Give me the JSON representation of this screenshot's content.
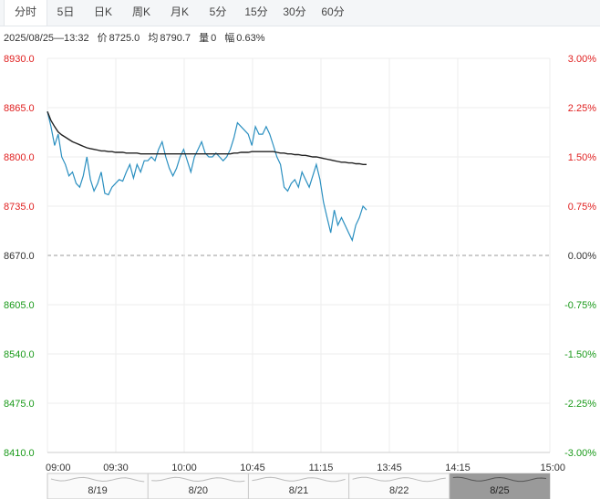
{
  "tabs": [
    {
      "label": "分时",
      "active": true
    },
    {
      "label": "5日",
      "active": false
    },
    {
      "label": "日K",
      "active": false
    },
    {
      "label": "周K",
      "active": false
    },
    {
      "label": "月K",
      "active": false
    },
    {
      "label": "5分",
      "active": false
    },
    {
      "label": "15分",
      "active": false
    },
    {
      "label": "30分",
      "active": false
    },
    {
      "label": "60分",
      "active": false
    }
  ],
  "info": {
    "datetime": "2025/08/25—13:32",
    "price_label": "价",
    "price": "8725.0",
    "avg_label": "均",
    "avg": "8790.7",
    "volume_label": "量",
    "volume": "0",
    "change_label": "幅",
    "change": "0.63%"
  },
  "colors": {
    "price_line": "#2a8fc0",
    "avg_line": "#222222",
    "up": "#e02020",
    "down": "#1a9a1a",
    "grid": "#eeeeee",
    "base": "#999999"
  },
  "chart_data": {
    "type": "line",
    "ylim": [
      8410,
      8930
    ],
    "base_price": 8670,
    "y_ticks_left": [
      "8930.0",
      "8865.0",
      "8800.0",
      "8735.0",
      "8670.0",
      "8605.0",
      "8540.0",
      "8475.0",
      "8410.0"
    ],
    "y_ticks_right": [
      "3.00%",
      "2.25%",
      "1.50%",
      "0.75%",
      "0.00%",
      "-0.75%",
      "-1.50%",
      "-2.25%",
      "-3.00%"
    ],
    "x_ticks": [
      "09:00",
      "09:30",
      "10:00",
      "10:45",
      "11:15",
      "13:45",
      "14:15",
      "15:00"
    ],
    "session_slots": 90,
    "series": [
      {
        "key": "price",
        "values": [
          8860,
          8840,
          8815,
          8830,
          8800,
          8790,
          8775,
          8780,
          8765,
          8760,
          8775,
          8800,
          8770,
          8755,
          8765,
          8780,
          8752,
          8750,
          8760,
          8765,
          8770,
          8768,
          8780,
          8790,
          8772,
          8790,
          8780,
          8795,
          8795,
          8800,
          8795,
          8810,
          8820,
          8800,
          8785,
          8775,
          8785,
          8800,
          8810,
          8795,
          8780,
          8800,
          8810,
          8820,
          8805,
          8800,
          8800,
          8805,
          8800,
          8795,
          8800,
          8810,
          8825,
          8845,
          8840,
          8835,
          8830,
          8815,
          8840,
          8830,
          8830,
          8840,
          8830,
          8815,
          8800,
          8790,
          8760,
          8755,
          8765,
          8770,
          8760,
          8780,
          8770,
          8760,
          8775,
          8790,
          8770,
          8740,
          8720,
          8700,
          8730,
          8710,
          8720,
          8710,
          8700,
          8690,
          8710,
          8720,
          8735,
          8730
        ]
      },
      {
        "key": "avg",
        "values": [
          8860,
          8848,
          8840,
          8833,
          8829,
          8826,
          8823,
          8820,
          8818,
          8816,
          8814,
          8812,
          8811,
          8810,
          8809,
          8808,
          8808,
          8807,
          8807,
          8806,
          8806,
          8806,
          8805,
          8805,
          8805,
          8805,
          8804,
          8804,
          8804,
          8804,
          8804,
          8804,
          8804,
          8804,
          8804,
          8804,
          8804,
          8804,
          8804,
          8804,
          8804,
          8804,
          8804,
          8804,
          8804,
          8804,
          8804,
          8804,
          8804,
          8804,
          8804,
          8804,
          8805,
          8805,
          8806,
          8806,
          8806,
          8807,
          8807,
          8807,
          8807,
          8807,
          8807,
          8807,
          8806,
          8805,
          8805,
          8804,
          8804,
          8803,
          8803,
          8802,
          8802,
          8801,
          8800,
          8800,
          8799,
          8798,
          8797,
          8796,
          8795,
          8794,
          8793,
          8793,
          8792,
          8792,
          8791,
          8791,
          8790,
          8790
        ]
      }
    ]
  },
  "navigator": {
    "days": [
      "8/19",
      "8/20",
      "8/21",
      "8/22",
      "8/25"
    ],
    "active_day": "8/25"
  }
}
